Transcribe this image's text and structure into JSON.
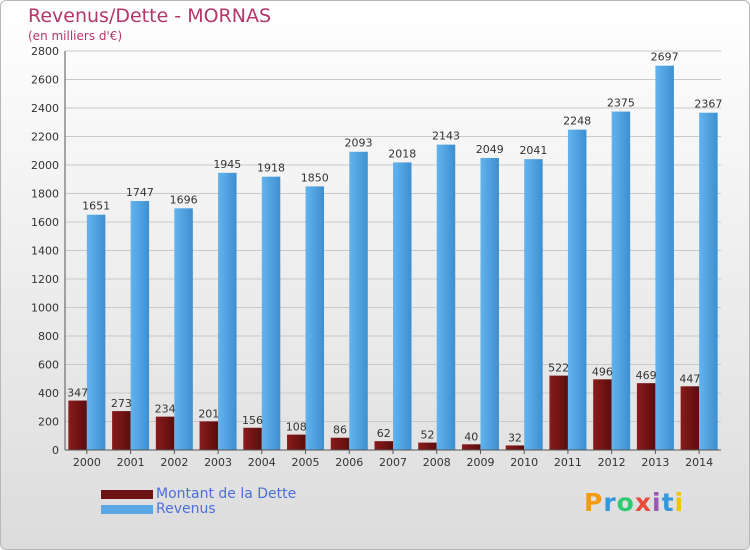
{
  "title": "Revenus/Dette - MORNAS",
  "subtitle": "(en milliers d'€)",
  "logo": {
    "letters": [
      "P",
      "r",
      "o",
      "x",
      "i",
      "t",
      "i"
    ],
    "colors": [
      "#f39c12",
      "#3498db",
      "#2ecc71",
      "#e74c3c",
      "#9b59b6",
      "#3498db",
      "#f1c40f"
    ]
  },
  "colors": {
    "title": "#b5366a",
    "dette": "#6e1313",
    "revenus": "#5aa9e6",
    "legend_text": "#4d6fd8"
  },
  "chart_data": {
    "type": "bar",
    "categories": [
      "2000",
      "2001",
      "2002",
      "2003",
      "2004",
      "2005",
      "2006",
      "2007",
      "2008",
      "2009",
      "2010",
      "2011",
      "2012",
      "2013",
      "2014"
    ],
    "series": [
      {
        "name": "Montant de la Dette",
        "values": [
          347,
          273,
          234,
          201,
          156,
          108,
          86,
          62,
          52,
          40,
          32,
          522,
          496,
          469,
          447
        ]
      },
      {
        "name": "Revenus",
        "values": [
          1651,
          1747,
          1696,
          1945,
          1918,
          1850,
          2093,
          2018,
          2143,
          2049,
          2041,
          2248,
          2375,
          2697,
          2367
        ]
      }
    ],
    "ylim": [
      0,
      2800
    ],
    "yticks": [
      0,
      200,
      400,
      600,
      800,
      1000,
      1200,
      1400,
      1600,
      1800,
      2000,
      2200,
      2400,
      2600,
      2800
    ],
    "grid": true,
    "legend_position": "bottom-left"
  }
}
